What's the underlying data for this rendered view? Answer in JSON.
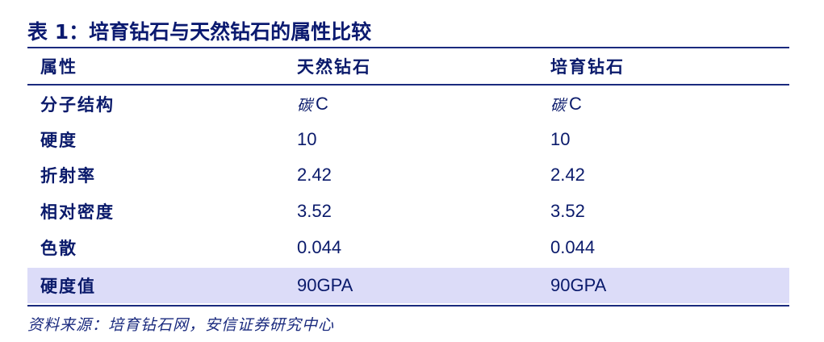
{
  "table": {
    "title": "表 1：培育钻石与天然钻石的属性比较",
    "headers": [
      "属性",
      "天然钻石",
      "培育钻石"
    ],
    "rows": [
      {
        "attr": "分子结构",
        "natural_cn": "碳",
        "natural": "C",
        "lab_cn": "碳",
        "lab": "C"
      },
      {
        "attr": "硬度",
        "natural_cn": "",
        "natural": "10",
        "lab_cn": "",
        "lab": "10"
      },
      {
        "attr": "折射率",
        "natural_cn": "",
        "natural": "2.42",
        "lab_cn": "",
        "lab": "2.42"
      },
      {
        "attr": "相对密度",
        "natural_cn": "",
        "natural": "3.52",
        "lab_cn": "",
        "lab": "3.52"
      },
      {
        "attr": "色散",
        "natural_cn": "",
        "natural": "0.044",
        "lab_cn": "",
        "lab": "0.044"
      },
      {
        "attr": "硬度值",
        "natural_cn": "",
        "natural": "90GPA",
        "lab_cn": "",
        "lab": "90GPA"
      }
    ],
    "highlight_color": "#dcdcf8",
    "text_color": "#0a1a6b"
  },
  "source": "资料来源：培育钻石网，安信证券研究中心"
}
